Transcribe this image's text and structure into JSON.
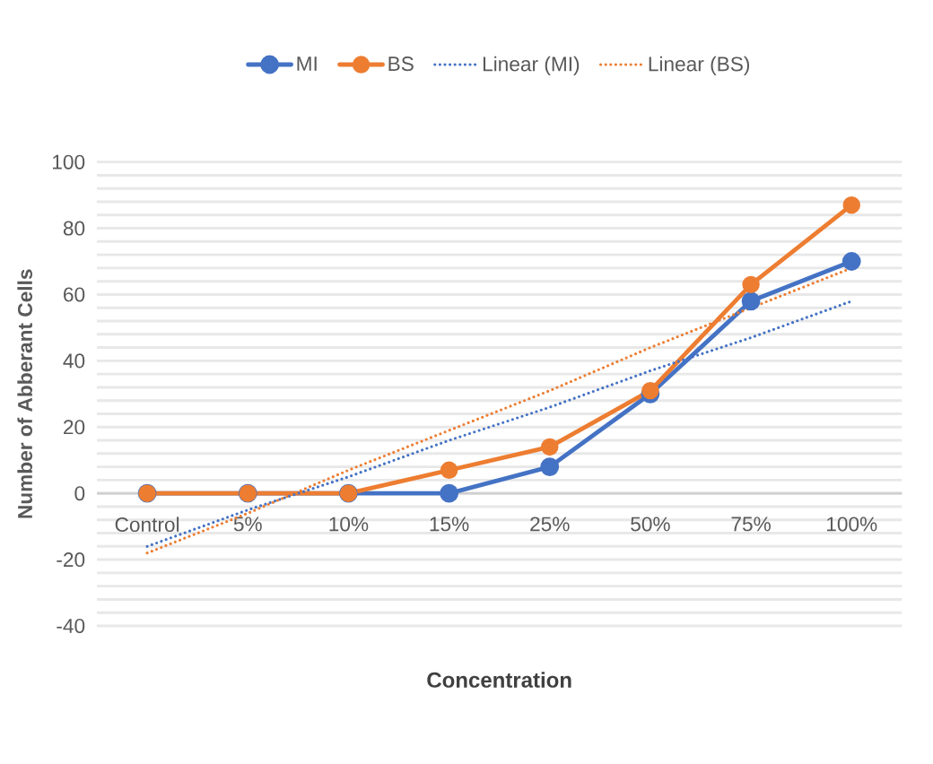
{
  "chart_data": {
    "type": "line",
    "xlabel": "Concentration",
    "ylabel": "Number of Abberant Cells",
    "categories": [
      "Control",
      "5%",
      "10%",
      "15%",
      "25%",
      "50%",
      "75%",
      "100%"
    ],
    "series": [
      {
        "name": "MI",
        "color": "#4472c4",
        "marker": "circle",
        "line_style": "solid",
        "values": [
          0,
          0,
          0,
          0,
          8,
          30,
          58,
          70
        ]
      },
      {
        "name": "BS",
        "color": "#ed7d31",
        "marker": "circle",
        "line_style": "solid",
        "values": [
          0,
          0,
          0,
          7,
          14,
          31,
          63,
          87
        ]
      },
      {
        "name": "Linear (MI)",
        "color": "#4472c4",
        "marker": "none",
        "line_style": "dotted",
        "values": [
          -16,
          -5,
          5,
          16,
          26,
          37,
          47,
          58
        ]
      },
      {
        "name": "Linear (BS)",
        "color": "#ed7d31",
        "marker": "none",
        "line_style": "dotted",
        "values": [
          -18,
          -6,
          7,
          19,
          31,
          44,
          56,
          68
        ]
      }
    ],
    "ylim": [
      -40,
      100
    ],
    "yticks": [
      -40,
      {
        "value": -36,
        "label": null
      },
      {
        "value": -32,
        "label": null
      },
      {
        "value": -28,
        "label": null
      },
      {
        "value": -24,
        "label": null
      },
      -20,
      {
        "value": -16,
        "label": null
      },
      {
        "value": -12,
        "label": null
      },
      {
        "value": -8,
        "label": null
      },
      {
        "value": -4,
        "label": null
      },
      0,
      {
        "value": 4,
        "label": null
      },
      {
        "value": 8,
        "label": null
      },
      {
        "value": 12,
        "label": null
      },
      {
        "value": 16,
        "label": null
      },
      20,
      {
        "value": 24,
        "label": null
      },
      {
        "value": 28,
        "label": null
      },
      {
        "value": 32,
        "label": null
      },
      {
        "value": 36,
        "label": null
      },
      40,
      {
        "value": 44,
        "label": null
      },
      {
        "value": 48,
        "label": null
      },
      {
        "value": 52,
        "label": null
      },
      {
        "value": 56,
        "label": null
      },
      60,
      {
        "value": 64,
        "label": null
      },
      {
        "value": 68,
        "label": null
      },
      {
        "value": 72,
        "label": null
      },
      {
        "value": 76,
        "label": null
      },
      80,
      {
        "value": 84,
        "label": null
      },
      {
        "value": 88,
        "label": null
      },
      {
        "value": 92,
        "label": null
      },
      {
        "value": 96,
        "label": null
      },
      100
    ],
    "grid": "y",
    "legend": "top"
  }
}
